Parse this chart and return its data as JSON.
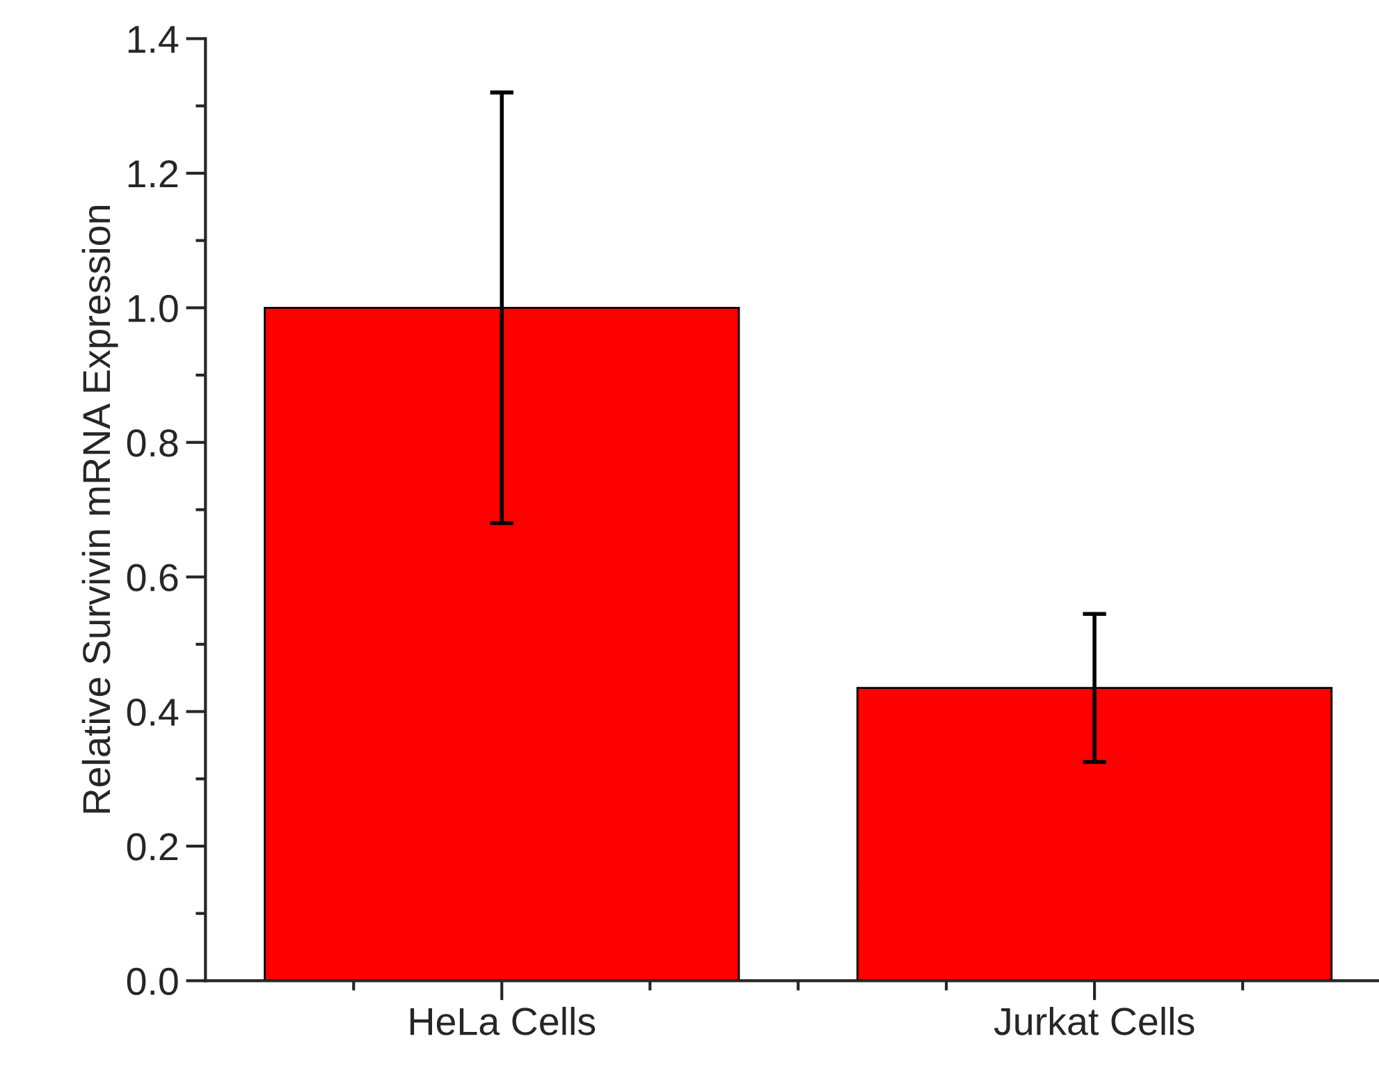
{
  "chart_data": {
    "type": "bar",
    "ylabel": "Relative Survivin mRNA Expression",
    "categories": [
      "HeLa Cells",
      "Jurkat Cells"
    ],
    "values": [
      1.0,
      0.435
    ],
    "color": "#ff0000",
    "errors": [
      [
        0.68,
        1.32
      ],
      [
        0.325,
        0.545
      ]
    ],
    "ylim": [
      0,
      1.4
    ],
    "yticks": [
      {
        "value": 0,
        "label": "0.0"
      },
      {
        "value": 0.2,
        "label": "0.2"
      },
      {
        "value": 0.4,
        "label": "0.4"
      },
      {
        "value": 0.6,
        "label": "0.6"
      },
      {
        "value": 0.8,
        "label": "0.8"
      },
      {
        "value": 1.0,
        "label": "1.0"
      },
      {
        "value": 1.2,
        "label": "1.2"
      },
      {
        "value": 1.4,
        "label": "1.4"
      }
    ],
    "grid": false,
    "legend": false
  }
}
